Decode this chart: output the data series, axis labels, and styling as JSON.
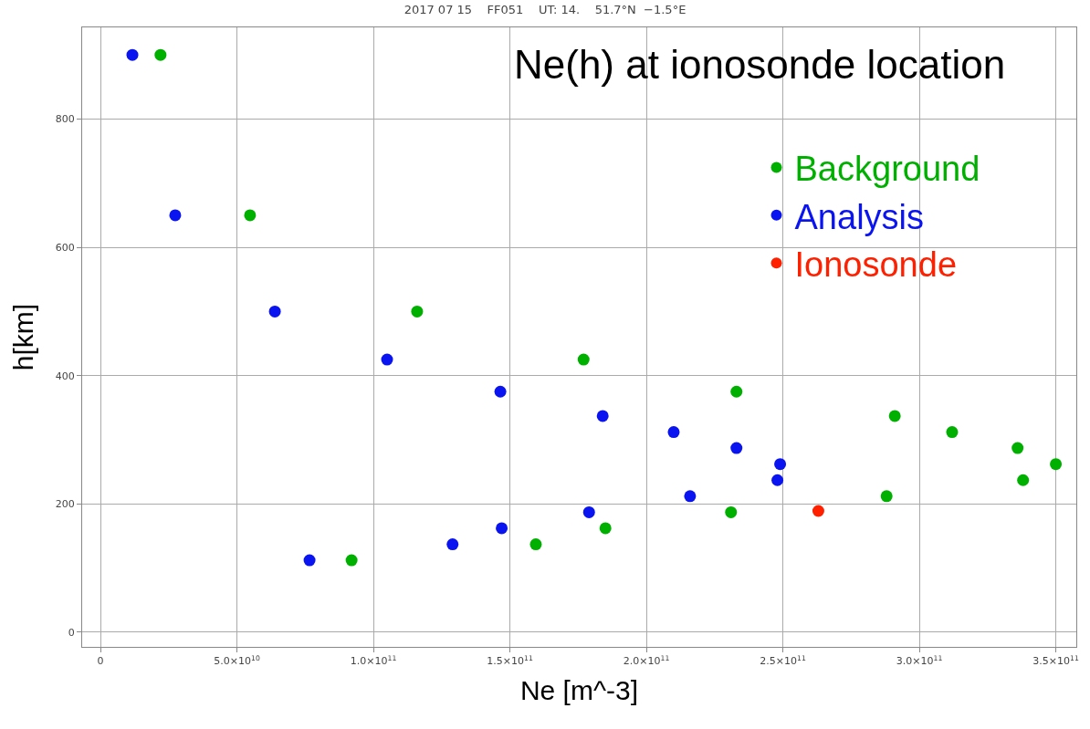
{
  "chart_data": {
    "type": "scatter",
    "title": "2017 07 15    FF051    UT: 14.    51.7°N  −1.5°E",
    "annotations": [
      "Ne(h) at ionosonde location"
    ],
    "xlabel": "Ne [m^-3]",
    "ylabel": "h[km]",
    "series": [
      {
        "name": "Background",
        "color": "#00b000",
        "x": [
          22000000000.0,
          54800000000.0,
          116000000000.0,
          177000000000.0,
          233000000000.0,
          291000000000.0,
          312000000000.0,
          336000000000.0,
          350000000000.0,
          338000000000.0,
          288000000000.0,
          231000000000.0,
          185000000000.0,
          159500000000.0,
          92000000000.0
        ],
        "values": [
          900,
          650,
          500,
          425,
          375,
          337,
          312,
          287,
          262,
          237,
          212,
          187,
          162,
          137,
          112
        ]
      },
      {
        "name": "Analysis",
        "color": "#0a14f0",
        "x": [
          11700000000.0,
          27400000000.0,
          63900000000.0,
          105000000000.0,
          146500000000.0,
          184000000000.0,
          210000000000.0,
          233000000000.0,
          249000000000.0,
          248000000000.0,
          216000000000.0,
          179000000000.0,
          147000000000.0,
          129000000000.0,
          76600000000.0
        ],
        "values": [
          900,
          650,
          500,
          425,
          375,
          337,
          312,
          287,
          262,
          237,
          212,
          187,
          162,
          137,
          112
        ]
      },
      {
        "name": "Ionosonde",
        "color": "#ff2000",
        "x": [
          263000000000.0
        ],
        "values": [
          189
        ]
      }
    ],
    "marker": "circle",
    "grid": true,
    "legend": "top right",
    "xlim": [
      -6700000000.0,
      357500000000.0
    ],
    "ylim": [
      -23,
      943
    ],
    "xticks": [
      0,
      {
        "value": 50000000000.0,
        "label": "5.0×10$^{10}$"
      },
      {
        "value": 100000000000.0,
        "label": "1.0×10$^{11}$"
      },
      {
        "value": 150000000000.0,
        "label": "1.5×10$^{11}$"
      },
      {
        "value": 200000000000.0,
        "label": "2.0×10$^{11}$"
      },
      {
        "value": 250000000000.0,
        "label": "2.5×10$^{11}$"
      },
      {
        "value": 300000000000.0,
        "label": "3.0×10$^{11}$"
      },
      {
        "value": 350000000000.0,
        "label": "3.5×10$^{11}$"
      }
    ],
    "yticks": [
      0,
      200,
      400,
      600,
      800
    ]
  }
}
